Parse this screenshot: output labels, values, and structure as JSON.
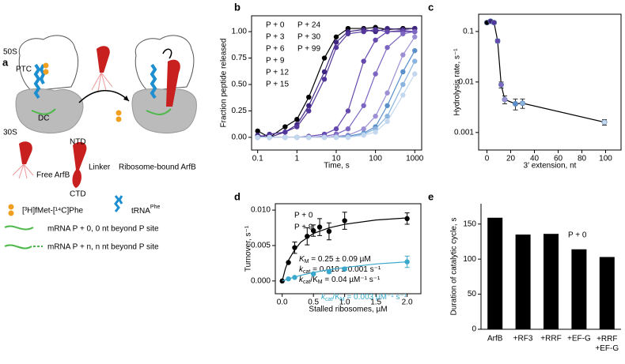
{
  "diagram": {
    "panel_label": "a",
    "large_subunit": "50S",
    "small_subunit": "30S",
    "ptc": "PTC",
    "dc": "DC",
    "free_arfb": "Free ArfB",
    "ntd": "NTD",
    "linker": "Linker",
    "ctd": "CTD",
    "bound_arfb": "Ribosome-bound ArfB",
    "peptide": "[³H]fMet-[¹⁴C]Phe",
    "trna": "tRNA",
    "trna_sup": "Phe",
    "mrna_p0": "mRNA P + 0, 0 nt beyond P site",
    "mrna_pn": "mRNA P + n, n nt beyond P site"
  },
  "chart_data": [
    {
      "type": "scatter",
      "panel_label": "b",
      "xlabel": "Time, s",
      "ylabel": "Fraction peptide released",
      "xscale": "log",
      "xlim": [
        0.07,
        1500
      ],
      "ylim": [
        -0.12,
        1.15
      ],
      "xticks": [
        0.1,
        1,
        10,
        100,
        1000
      ],
      "yticks": [
        {
          "value": 0,
          "label": "0.00"
        },
        0.25,
        {
          "value": 0.5,
          "label": "0.50"
        },
        0.75,
        {
          "value": 1,
          "label": "1.00"
        }
      ],
      "box": true,
      "connect": true,
      "x": [
        0.1,
        0.2,
        0.5,
        1,
        2,
        5,
        10,
        20,
        50,
        100,
        200,
        500,
        1000
      ],
      "series": [
        {
          "name": "P + 0",
          "color": "#000000",
          "values": [
            0.06,
            0.0,
            0.1,
            0.17,
            0.38,
            0.75,
            0.95,
            1.03,
            1.03,
            1.04,
            1.02,
            1.03,
            1.03
          ]
        },
        {
          "name": "P + 3",
          "color": "#3f2680",
          "values": [
            0.02,
            0.0,
            0.05,
            0.12,
            0.3,
            0.62,
            0.9,
            1.0,
            1.02,
            1.0,
            1.03,
            1.02,
            1.03
          ]
        },
        {
          "name": "P + 6",
          "color": "#53369a",
          "values": [
            0.0,
            0.03,
            0.05,
            0.1,
            0.25,
            0.55,
            0.85,
            0.98,
            1.0,
            1.02,
            1.0,
            1.01,
            1.0
          ]
        },
        {
          "name": "P + 9",
          "color": "#6548ad",
          "values": [
            0.0,
            0.0,
            0.0,
            0.0,
            0.01,
            0.03,
            0.08,
            0.25,
            0.72,
            0.92,
            1.0,
            1.0,
            1.0
          ]
        },
        {
          "name": "P + 12",
          "color": "#7d66c2",
          "values": [
            0.0,
            0.0,
            0.0,
            0.0,
            0.0,
            0.01,
            0.03,
            0.08,
            0.3,
            0.6,
            0.85,
            0.98,
            1.0
          ]
        },
        {
          "name": "P + 15",
          "color": "#9d8fd4",
          "values": [
            0.0,
            0.0,
            0.0,
            0.0,
            0.0,
            0.0,
            0.01,
            0.02,
            0.08,
            0.2,
            0.42,
            0.78,
            0.95
          ]
        },
        {
          "name": "P + 24",
          "color": "#5a8fca",
          "values": [
            0.0,
            0.0,
            0.0,
            0.0,
            0.0,
            0.0,
            0.0,
            0.01,
            0.04,
            0.1,
            0.3,
            0.62,
            0.82
          ]
        },
        {
          "name": "P + 30",
          "color": "#8ab4de",
          "values": [
            0.0,
            0.0,
            0.0,
            0.0,
            0.0,
            0.0,
            0.0,
            0.0,
            0.03,
            0.08,
            0.2,
            0.5,
            0.72
          ]
        },
        {
          "name": "P + 99",
          "color": "#c3d7ee",
          "values": [
            0.0,
            0.0,
            0.0,
            0.0,
            0.0,
            0.0,
            0.0,
            0.0,
            0.02,
            0.05,
            0.15,
            0.4,
            0.6
          ]
        }
      ]
    },
    {
      "type": "errorscatter",
      "panel_label": "c",
      "xlabel": "3′ extension, nt",
      "ylabel": "Hydrolysis rate, s⁻¹",
      "yscale": "log",
      "xlim": [
        -7,
        113
      ],
      "ylim": [
        0.00045,
        0.22
      ],
      "xticks": [
        0,
        20,
        40,
        60,
        80,
        100
      ],
      "yticks": [
        0.001,
        0.01,
        0.1
      ],
      "box": true,
      "connect": true,
      "line_color": "#000000",
      "series": [
        {
          "x": [
            0,
            3,
            6,
            9,
            12,
            15,
            24,
            30,
            99
          ],
          "values": [
            0.15,
            0.16,
            0.15,
            0.065,
            0.0088,
            0.0045,
            0.0037,
            0.0038,
            0.0016
          ],
          "errors": [
            0.01,
            0.01,
            0.01,
            0.005,
            0.0012,
            0.0008,
            0.0009,
            0.0008,
            0.0002
          ],
          "colors": [
            "#000000",
            "#3f2680",
            "#53369a",
            "#6548ad",
            "#7d66c2",
            "#9d8fd4",
            "#5a8fca",
            "#8ab4de",
            "#c3d7ee"
          ]
        }
      ]
    },
    {
      "type": "errorscatter",
      "panel_label": "d",
      "xlabel": "Stalled ribosomes, µM",
      "ylabel": "Turnover, s⁻¹",
      "xlim": [
        -0.11,
        2.22
      ],
      "ylim": [
        -0.0018,
        0.0109
      ],
      "xticks": [
        {
          "value": 0,
          "label": "0.0"
        },
        0.5,
        {
          "value": 1,
          "label": "1.0"
        },
        1.5,
        {
          "value": 2,
          "label": "2.0"
        }
      ],
      "yticks": [
        {
          "value": 0,
          "label": "0.000"
        },
        {
          "value": 0.005,
          "label": "0.005"
        },
        {
          "value": 0.01,
          "label": "0.010"
        }
      ],
      "box": true,
      "fit_x": [
        0,
        0.05,
        0.1,
        0.2,
        0.3,
        0.5,
        0.75,
        1,
        1.5,
        2
      ],
      "series": [
        {
          "name": "P + 0",
          "color": "#000000",
          "x": [
            0,
            0.1,
            0.2,
            0.4,
            0.5,
            0.6,
            0.75,
            1.0,
            2.0
          ],
          "values": [
            0,
            0.0026,
            0.0047,
            0.0063,
            0.0071,
            0.0076,
            0.007,
            0.0085,
            0.0088
          ],
          "errors": [
            0,
            0,
            0.0008,
            0.0012,
            0.0008,
            0.0012,
            0.0012,
            0.0012,
            0.0008
          ],
          "fit": [
            0,
            0.0017,
            0.0029,
            0.0044,
            0.0055,
            0.0067,
            0.0075,
            0.008,
            0.0086,
            0.0089
          ],
          "annotations": [
            [
              "K",
              "M",
              " = 0.25 ± 0.09 µM"
            ],
            [
              "k",
              "cat",
              " = 0.010 ± 0.001 s⁻¹"
            ],
            [
              "k",
              "cat",
              "/K",
              "M",
              " = 0.04 µM⁻¹ s⁻¹"
            ]
          ]
        },
        {
          "name": "P + 9",
          "color": "#3aa8cc",
          "x": [
            0.1,
            0.2,
            0.5,
            0.75,
            1.0,
            2.0
          ],
          "values": [
            0.0003,
            0.0005,
            0.001,
            0.0013,
            0.0017,
            0.0027
          ],
          "errors": [
            0.0001,
            0.0001,
            0.0001,
            0.0002,
            0.0002,
            0.0008
          ],
          "fit": [
            0,
            0.00015,
            0.0003,
            0.00055,
            0.0008,
            0.0012,
            0.0016,
            0.0019,
            0.0024,
            0.0027
          ],
          "annotations": [
            [
              "k",
              "cat",
              "/K",
              "M",
              " = 0.003 µM⁻¹ s⁻¹"
            ]
          ]
        }
      ]
    },
    {
      "type": "bar",
      "panel_label": "e",
      "ylabel": "Duration of catalytic cycle, s",
      "annotation": "P + 0",
      "categories": [
        "ArfB",
        "+RF3",
        "+RRF",
        "+EF-G",
        "+RRF\n+EF-G"
      ],
      "values": [
        159,
        135,
        136,
        114,
        103
      ],
      "color": "#000000",
      "ylim": [
        0,
        179
      ],
      "yticks": [
        0,
        50,
        100,
        150
      ],
      "box": false
    }
  ]
}
